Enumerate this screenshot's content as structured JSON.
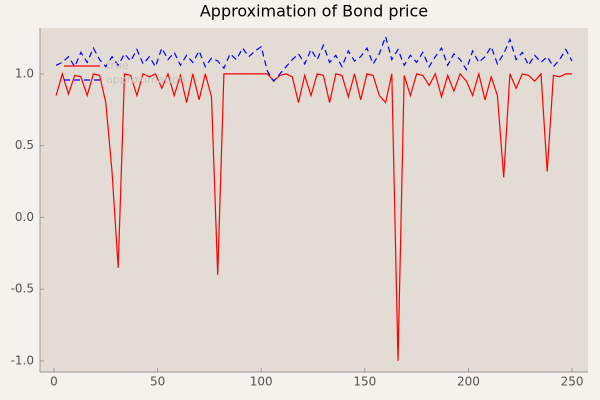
{
  "chart_data": {
    "type": "line",
    "title": "Approximation of Bond price",
    "x": [
      1,
      4,
      7,
      10,
      13,
      16,
      19,
      22,
      25,
      28,
      31,
      34,
      37,
      40,
      43,
      46,
      49,
      52,
      55,
      58,
      61,
      64,
      67,
      70,
      73,
      76,
      79,
      82,
      85,
      88,
      91,
      94,
      97,
      100,
      103,
      106,
      109,
      112,
      115,
      118,
      121,
      124,
      127,
      130,
      133,
      136,
      139,
      142,
      145,
      148,
      151,
      154,
      157,
      160,
      163,
      166,
      169,
      172,
      175,
      178,
      181,
      184,
      187,
      190,
      193,
      196,
      199,
      202,
      205,
      208,
      211,
      214,
      217,
      220,
      223,
      226,
      229,
      232,
      235,
      238,
      241,
      244,
      247,
      250
    ],
    "series": [
      {
        "name": "true",
        "color": "#ff0000",
        "dash": false,
        "values": [
          0.85,
          1.0,
          0.86,
          0.99,
          0.98,
          0.85,
          1.0,
          0.99,
          0.8,
          0.32,
          -0.35,
          1.0,
          0.99,
          0.85,
          1.0,
          0.98,
          1.0,
          0.9,
          1.0,
          0.85,
          0.99,
          0.8,
          1.0,
          0.82,
          1.0,
          0.84,
          -0.4,
          1.0,
          1.0,
          1.0,
          1.0,
          1.0,
          1.0,
          1.0,
          1.0,
          0.95,
          0.99,
          1.0,
          0.98,
          0.8,
          0.99,
          0.85,
          1.0,
          0.99,
          0.8,
          1.0,
          0.99,
          0.84,
          1.0,
          0.82,
          1.0,
          0.99,
          0.85,
          0.8,
          1.0,
          -1.0,
          0.99,
          0.85,
          1.0,
          0.99,
          0.92,
          1.0,
          0.84,
          0.99,
          0.88,
          1.0,
          0.95,
          0.85,
          1.0,
          0.82,
          0.98,
          0.85,
          0.28,
          1.0,
          0.9,
          1.0,
          0.99,
          0.95,
          1.0,
          0.32,
          0.99,
          0.98,
          1.0,
          1.0
        ]
      },
      {
        "name": "approximation",
        "color": "#0000ff",
        "dash": true,
        "values": [
          1.06,
          1.08,
          1.12,
          1.05,
          1.15,
          1.08,
          1.18,
          1.1,
          1.05,
          1.12,
          1.06,
          1.14,
          1.09,
          1.17,
          1.07,
          1.12,
          1.05,
          1.18,
          1.1,
          1.15,
          1.06,
          1.13,
          1.08,
          1.16,
          1.05,
          1.11,
          1.09,
          1.04,
          1.14,
          1.1,
          1.18,
          1.12,
          1.16,
          1.19,
          1.02,
          0.95,
          1.0,
          1.05,
          1.1,
          1.14,
          1.07,
          1.17,
          1.1,
          1.2,
          1.08,
          1.13,
          1.05,
          1.16,
          1.09,
          1.12,
          1.18,
          1.07,
          1.14,
          1.26,
          1.1,
          1.17,
          1.06,
          1.13,
          1.08,
          1.15,
          1.05,
          1.12,
          1.18,
          1.06,
          1.14,
          1.1,
          1.03,
          1.16,
          1.08,
          1.12,
          1.19,
          1.07,
          1.14,
          1.24,
          1.1,
          1.15,
          1.06,
          1.13,
          1.08,
          1.12,
          1.05,
          1.1,
          1.17,
          1.09
        ]
      }
    ],
    "xlim": [
      -6.76,
      257.7
    ],
    "ylim": [
      -1.077,
      1.32
    ],
    "xticks": [
      0,
      50,
      100,
      150,
      200,
      250
    ],
    "yticks": [
      {
        "value": -1,
        "label": "-1.0"
      },
      -0.5,
      {
        "value": 0,
        "label": "0.0"
      },
      0.5,
      {
        "value": 1,
        "label": "1.0"
      }
    ],
    "grid": false,
    "legend": "upper-left"
  }
}
